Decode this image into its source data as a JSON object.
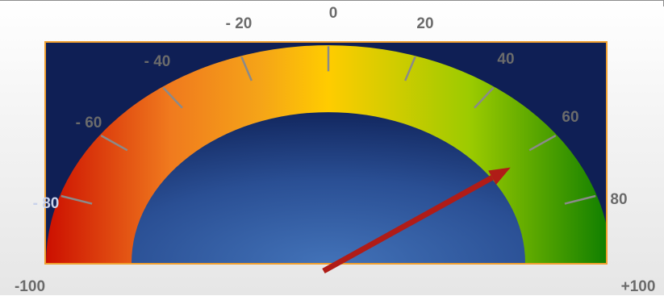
{
  "gauge": {
    "min": -100,
    "max": 100,
    "value": 62,
    "end_labels": {
      "min": "-100",
      "max": "+100"
    },
    "tick_labels": [
      {
        "value": -80,
        "text": "- 80"
      },
      {
        "value": -60,
        "text": "- 60"
      },
      {
        "value": -40,
        "text": "- 40"
      },
      {
        "value": -20,
        "text": "- 20"
      },
      {
        "value": 0,
        "text": "0"
      },
      {
        "value": 20,
        "text": "20"
      },
      {
        "value": 40,
        "text": "40"
      },
      {
        "value": 60,
        "text": "60"
      },
      {
        "value": 80,
        "text": "80"
      }
    ],
    "colors": {
      "panel": "#0f1f55",
      "panel_border": "#f0a030",
      "band_red": "#cc0f00",
      "band_orange": "#f07a1e",
      "band_yellow": "#ffcc00",
      "band_yellowgreen": "#9ccb00",
      "band_green": "#0d7d00",
      "needle": "#b01c17",
      "tick": "#8a8a8a",
      "label": "#6b6b6b"
    }
  }
}
